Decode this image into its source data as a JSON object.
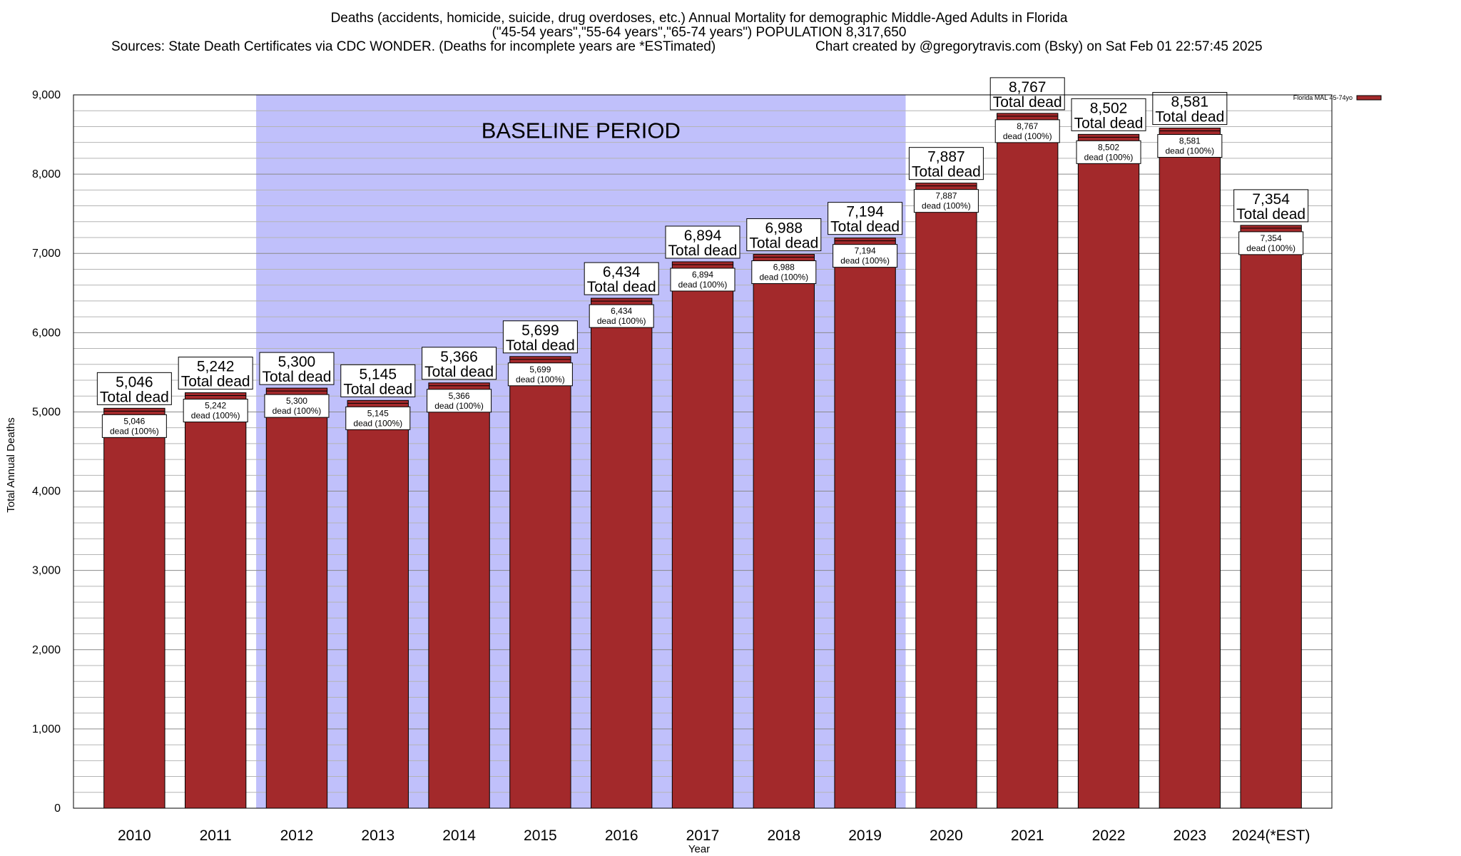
{
  "chart_data": {
    "type": "bar",
    "title_lines": [
      "Deaths (accidents, homicide, suicide, drug overdoses, etc.) Annual Mortality for demographic Middle-Aged Adults in Florida",
      "(\"45-54 years\",\"55-64 years\",\"65-74 years\") POPULATION 8,317,650"
    ],
    "sources_text": "Sources: State Death Certificates via CDC WONDER. (Deaths for incomplete years are *ESTimated)",
    "credit_text": "Chart created by @gregorytravis.com (Bsky) on Sat Feb 01 22:57:45 2025",
    "xlabel": "Year",
    "ylabel": "Total Annual Deaths",
    "ylim": [
      0,
      9000
    ],
    "y_ticks": [
      0,
      1000,
      2000,
      3000,
      4000,
      5000,
      6000,
      7000,
      8000,
      9000
    ],
    "y_tick_labels": [
      "0",
      "1,000",
      "2,000",
      "3,000",
      "4,000",
      "5,000",
      "6,000",
      "7,000",
      "8,000",
      "9,000"
    ],
    "grid": true,
    "categories": [
      "2010",
      "2011",
      "2012",
      "2013",
      "2014",
      "2015",
      "2016",
      "2017",
      "2018",
      "2019",
      "2020",
      "2021",
      "2022",
      "2023",
      "2024(*EST)"
    ],
    "series": [
      {
        "name": "Florida MAL 45-74yo",
        "color": "#a3292b",
        "values": [
          5046,
          5242,
          5300,
          5145,
          5366,
          5699,
          6434,
          6894,
          6988,
          7194,
          7887,
          8767,
          8502,
          8581,
          7354
        ]
      }
    ],
    "value_labels": [
      "5,046",
      "5,242",
      "5,300",
      "5,145",
      "5,366",
      "5,699",
      "6,434",
      "6,894",
      "6,988",
      "7,194",
      "7,887",
      "8,767",
      "8,502",
      "8,581",
      "7,354"
    ],
    "total_label": "Total dead",
    "pct_label": "dead (100%)",
    "legend": {
      "label": "Florida MAL 45-74yo",
      "position": "top-right"
    },
    "baseline_band": {
      "label": "BASELINE PERIOD",
      "from": "2012",
      "to": "2019",
      "color": "#c0c0fb"
    }
  }
}
